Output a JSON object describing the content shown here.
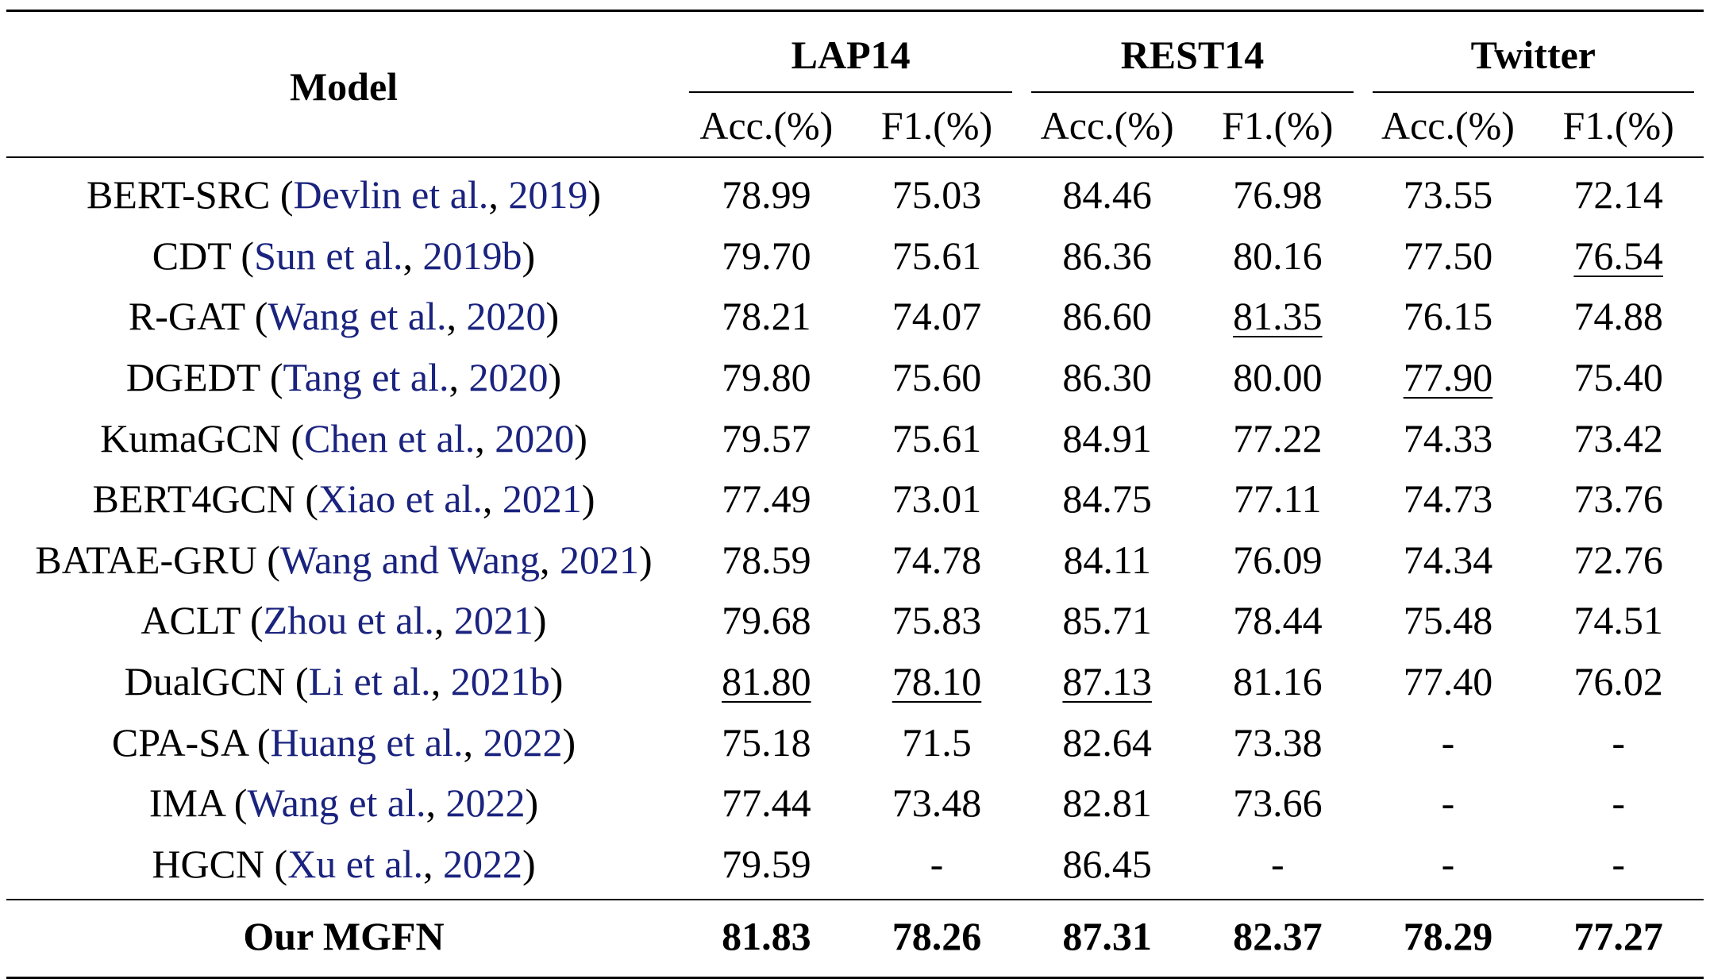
{
  "table": {
    "model_header": "Model",
    "groups": [
      "LAP14",
      "REST14",
      "Twitter"
    ],
    "metrics": [
      "Acc.(%)",
      "F1.(%)",
      "Acc.(%)",
      "F1.(%)",
      "Acc.(%)",
      "F1.(%)"
    ],
    "rows": [
      {
        "name": "BERT-SRC",
        "cite_authors": "Devlin et al.",
        "cite_year": "2019",
        "values": [
          "78.99",
          "75.03",
          "84.46",
          "76.98",
          "73.55",
          "72.14"
        ],
        "underline": []
      },
      {
        "name": "CDT",
        "cite_authors": "Sun et al.",
        "cite_year": "2019b",
        "values": [
          "79.70",
          "75.61",
          "86.36",
          "80.16",
          "77.50",
          "76.54"
        ],
        "underline": [
          5
        ]
      },
      {
        "name": "R-GAT",
        "cite_authors": "Wang et al.",
        "cite_year": "2020",
        "values": [
          "78.21",
          "74.07",
          "86.60",
          "81.35",
          "76.15",
          "74.88"
        ],
        "underline": [
          3
        ]
      },
      {
        "name": "DGEDT",
        "cite_authors": "Tang et al.",
        "cite_year": "2020",
        "values": [
          "79.80",
          "75.60",
          "86.30",
          "80.00",
          "77.90",
          "75.40"
        ],
        "underline": [
          4
        ]
      },
      {
        "name": "KumaGCN",
        "cite_authors": "Chen et al.",
        "cite_year": "2020",
        "values": [
          "79.57",
          "75.61",
          "84.91",
          "77.22",
          "74.33",
          "73.42"
        ],
        "underline": []
      },
      {
        "name": "BERT4GCN",
        "cite_authors": "Xiao et al.",
        "cite_year": "2021",
        "values": [
          "77.49",
          "73.01",
          "84.75",
          "77.11",
          "74.73",
          "73.76"
        ],
        "underline": []
      },
      {
        "name": "BATAE-GRU",
        "cite_authors": "Wang and Wang",
        "cite_year": "2021",
        "values": [
          "78.59",
          "74.78",
          "84.11",
          "76.09",
          "74.34",
          "72.76"
        ],
        "underline": []
      },
      {
        "name": "ACLT",
        "cite_authors": "Zhou et al.",
        "cite_year": "2021",
        "values": [
          "79.68",
          "75.83",
          "85.71",
          "78.44",
          "75.48",
          "74.51"
        ],
        "underline": []
      },
      {
        "name": "DualGCN",
        "cite_authors": "Li et al.",
        "cite_year": "2021b",
        "values": [
          "81.80",
          "78.10",
          "87.13",
          "81.16",
          "77.40",
          "76.02"
        ],
        "underline": [
          0,
          1,
          2
        ]
      },
      {
        "name": "CPA-SA",
        "cite_authors": "Huang et al.",
        "cite_year": "2022",
        "values": [
          "75.18",
          "71.5",
          "82.64",
          "73.38",
          "-",
          "-"
        ],
        "underline": []
      },
      {
        "name": "IMA",
        "cite_authors": "Wang et al.",
        "cite_year": "2022",
        "values": [
          "77.44",
          "73.48",
          "82.81",
          "73.66",
          "-",
          "-"
        ],
        "underline": []
      },
      {
        "name": "HGCN",
        "cite_authors": "Xu et al.",
        "cite_year": "2022",
        "values": [
          "79.59",
          "-",
          "86.45",
          "-",
          "-",
          "-"
        ],
        "underline": []
      }
    ],
    "ours": {
      "name": "Our MGFN",
      "values": [
        "81.83",
        "78.26",
        "87.31",
        "82.37",
        "78.29",
        "77.27"
      ]
    },
    "colors": {
      "citation": "#1a237e",
      "text": "#000000"
    }
  }
}
